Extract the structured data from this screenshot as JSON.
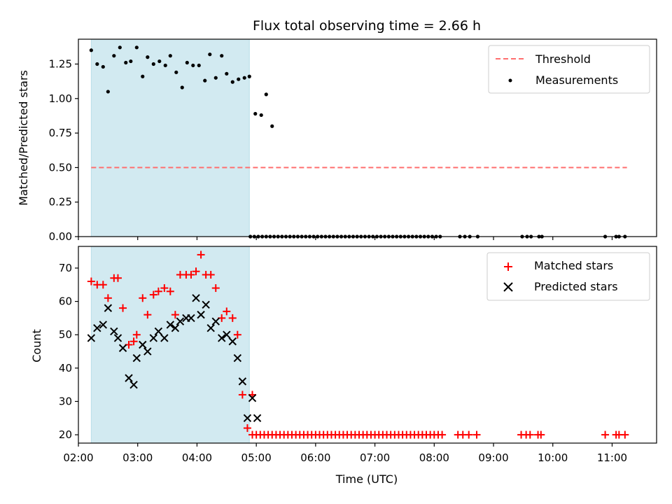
{
  "chart_data": [
    {
      "type": "scatter",
      "title": "Flux total observing time = 2.66 h",
      "ylabel": "Matched/Predicted stars",
      "xlabel": "",
      "xlim": [
        "02:00",
        "11:45"
      ],
      "ylim": [
        0,
        1.43
      ],
      "yticks": [
        0.0,
        0.25,
        0.5,
        0.75,
        1.0,
        1.25
      ],
      "ytick_labels": [
        "0.00",
        "0.25",
        "0.50",
        "0.75",
        "1.00",
        "1.25"
      ],
      "grid": false,
      "legend_position": "top-right",
      "shaded_span": {
        "start": "02:13",
        "end": "04:53",
        "color": "#add8e6"
      },
      "threshold": {
        "name": "Threshold",
        "y": 0.5,
        "x_start": "02:13",
        "x_end": "11:15",
        "color": "#ff6f6f",
        "style": "dashed"
      },
      "series": [
        {
          "name": "Measurements",
          "color": "#000000",
          "marker": "dot",
          "points": [
            [
              "02:13",
              1.35
            ],
            [
              "02:19",
              1.25
            ],
            [
              "02:25",
              1.23
            ],
            [
              "02:30",
              1.05
            ],
            [
              "02:36",
              1.31
            ],
            [
              "02:42",
              1.37
            ],
            [
              "02:48",
              1.26
            ],
            [
              "02:53",
              1.27
            ],
            [
              "02:59",
              1.37
            ],
            [
              "03:05",
              1.16
            ],
            [
              "03:10",
              1.3
            ],
            [
              "03:16",
              1.25
            ],
            [
              "03:22",
              1.27
            ],
            [
              "03:28",
              1.24
            ],
            [
              "03:33",
              1.31
            ],
            [
              "03:39",
              1.19
            ],
            [
              "03:45",
              1.08
            ],
            [
              "03:50",
              1.26
            ],
            [
              "03:56",
              1.24
            ],
            [
              "04:02",
              1.24
            ],
            [
              "04:08",
              1.13
            ],
            [
              "04:13",
              1.32
            ],
            [
              "04:19",
              1.15
            ],
            [
              "04:25",
              1.31
            ],
            [
              "04:30",
              1.18
            ],
            [
              "04:36",
              1.12
            ],
            [
              "04:42",
              1.14
            ],
            [
              "04:48",
              1.15
            ],
            [
              "04:53",
              1.16
            ],
            [
              "04:59",
              0.89
            ],
            [
              "05:05",
              0.88
            ],
            [
              "05:10",
              1.03
            ],
            [
              "05:16",
              0.8
            ],
            [
              "04:54",
              0
            ],
            [
              "04:58",
              0
            ],
            [
              "05:02",
              0
            ],
            [
              "05:06",
              0
            ],
            [
              "05:10",
              0
            ],
            [
              "05:14",
              0
            ],
            [
              "05:18",
              0
            ],
            [
              "05:22",
              0
            ],
            [
              "05:26",
              0
            ],
            [
              "05:30",
              0
            ],
            [
              "05:34",
              0
            ],
            [
              "05:38",
              0
            ],
            [
              "05:42",
              0
            ],
            [
              "05:46",
              0
            ],
            [
              "05:50",
              0
            ],
            [
              "05:54",
              0
            ],
            [
              "05:58",
              0
            ],
            [
              "06:02",
              0
            ],
            [
              "06:06",
              0
            ],
            [
              "06:10",
              0
            ],
            [
              "06:14",
              0
            ],
            [
              "06:18",
              0
            ],
            [
              "06:22",
              0
            ],
            [
              "06:26",
              0
            ],
            [
              "06:30",
              0
            ],
            [
              "06:34",
              0
            ],
            [
              "06:38",
              0
            ],
            [
              "06:42",
              0
            ],
            [
              "06:46",
              0
            ],
            [
              "06:50",
              0
            ],
            [
              "06:54",
              0
            ],
            [
              "06:58",
              0
            ],
            [
              "07:02",
              0
            ],
            [
              "07:06",
              0
            ],
            [
              "07:10",
              0
            ],
            [
              "07:14",
              0
            ],
            [
              "07:18",
              0
            ],
            [
              "07:22",
              0
            ],
            [
              "07:26",
              0
            ],
            [
              "07:30",
              0
            ],
            [
              "07:34",
              0
            ],
            [
              "07:38",
              0
            ],
            [
              "07:42",
              0
            ],
            [
              "07:46",
              0
            ],
            [
              "07:50",
              0
            ],
            [
              "07:54",
              0
            ],
            [
              "07:58",
              0
            ],
            [
              "08:02",
              0
            ],
            [
              "08:06",
              0
            ],
            [
              "08:26",
              0
            ],
            [
              "08:31",
              0
            ],
            [
              "08:36",
              0
            ],
            [
              "08:44",
              0
            ],
            [
              "09:29",
              0
            ],
            [
              "09:34",
              0
            ],
            [
              "09:38",
              0
            ],
            [
              "09:46",
              0
            ],
            [
              "09:49",
              0
            ],
            [
              "10:53",
              0
            ],
            [
              "11:04",
              0
            ],
            [
              "11:07",
              0
            ],
            [
              "11:13",
              0
            ]
          ]
        }
      ]
    },
    {
      "type": "scatter",
      "title": "",
      "ylabel": "Count",
      "xlabel": "Time (UTC)",
      "xlim": [
        "02:00",
        "11:45"
      ],
      "ylim": [
        17.5,
        76.5
      ],
      "yticks": [
        20,
        30,
        40,
        50,
        60,
        70
      ],
      "ytick_labels": [
        "20",
        "30",
        "40",
        "50",
        "60",
        "70"
      ],
      "xticks": [
        "02:00",
        "03:00",
        "04:00",
        "05:00",
        "06:00",
        "07:00",
        "08:00",
        "09:00",
        "10:00",
        "11:00"
      ],
      "xtick_labels": [
        "02:00",
        "03:00",
        "04:00",
        "05:00",
        "06:00",
        "07:00",
        "08:00",
        "09:00",
        "10:00",
        "11:00"
      ],
      "grid": false,
      "legend_position": "top-right",
      "shaded_span": {
        "start": "02:13",
        "end": "04:53",
        "color": "#add8e6"
      },
      "series": [
        {
          "name": "Matched stars",
          "color": "#ff0000",
          "marker": "plus",
          "points": [
            [
              "02:13",
              66
            ],
            [
              "02:19",
              65
            ],
            [
              "02:25",
              65
            ],
            [
              "02:30",
              61
            ],
            [
              "02:36",
              67
            ],
            [
              "02:40",
              67
            ],
            [
              "02:45",
              58
            ],
            [
              "02:51",
              47
            ],
            [
              "02:56",
              48
            ],
            [
              "02:59",
              50
            ],
            [
              "03:05",
              61
            ],
            [
              "03:10",
              56
            ],
            [
              "03:16",
              62
            ],
            [
              "03:21",
              63
            ],
            [
              "03:27",
              64
            ],
            [
              "03:33",
              63
            ],
            [
              "03:38",
              56
            ],
            [
              "03:43",
              68
            ],
            [
              "03:49",
              68
            ],
            [
              "03:54",
              68
            ],
            [
              "03:59",
              69
            ],
            [
              "04:04",
              74
            ],
            [
              "04:09",
              68
            ],
            [
              "04:14",
              68
            ],
            [
              "04:19",
              64
            ],
            [
              "04:25",
              55
            ],
            [
              "04:30",
              57
            ],
            [
              "04:36",
              55
            ],
            [
              "04:41",
              50
            ],
            [
              "04:46",
              32
            ],
            [
              "04:51",
              22
            ],
            [
              "04:56",
              32
            ],
            [
              "04:56",
              20
            ],
            [
              "05:00",
              20
            ],
            [
              "05:04",
              20
            ],
            [
              "05:08",
              20
            ],
            [
              "05:12",
              20
            ],
            [
              "05:16",
              20
            ],
            [
              "05:20",
              20
            ],
            [
              "05:24",
              20
            ],
            [
              "05:28",
              20
            ],
            [
              "05:32",
              20
            ],
            [
              "05:36",
              20
            ],
            [
              "05:40",
              20
            ],
            [
              "05:44",
              20
            ],
            [
              "05:48",
              20
            ],
            [
              "05:52",
              20
            ],
            [
              "05:56",
              20
            ],
            [
              "06:00",
              20
            ],
            [
              "06:04",
              20
            ],
            [
              "06:08",
              20
            ],
            [
              "06:12",
              20
            ],
            [
              "06:16",
              20
            ],
            [
              "06:20",
              20
            ],
            [
              "06:24",
              20
            ],
            [
              "06:28",
              20
            ],
            [
              "06:32",
              20
            ],
            [
              "06:36",
              20
            ],
            [
              "06:40",
              20
            ],
            [
              "06:44",
              20
            ],
            [
              "06:48",
              20
            ],
            [
              "06:52",
              20
            ],
            [
              "06:56",
              20
            ],
            [
              "07:00",
              20
            ],
            [
              "07:04",
              20
            ],
            [
              "07:08",
              20
            ],
            [
              "07:12",
              20
            ],
            [
              "07:16",
              20
            ],
            [
              "07:20",
              20
            ],
            [
              "07:24",
              20
            ],
            [
              "07:28",
              20
            ],
            [
              "07:32",
              20
            ],
            [
              "07:36",
              20
            ],
            [
              "07:40",
              20
            ],
            [
              "07:44",
              20
            ],
            [
              "07:48",
              20
            ],
            [
              "07:52",
              20
            ],
            [
              "07:56",
              20
            ],
            [
              "08:00",
              20
            ],
            [
              "08:04",
              20
            ],
            [
              "08:08",
              20
            ],
            [
              "08:24",
              20
            ],
            [
              "08:29",
              20
            ],
            [
              "08:35",
              20
            ],
            [
              "08:43",
              20
            ],
            [
              "09:28",
              20
            ],
            [
              "09:33",
              20
            ],
            [
              "09:37",
              20
            ],
            [
              "09:45",
              20
            ],
            [
              "09:48",
              20
            ],
            [
              "10:53",
              20
            ],
            [
              "11:04",
              20
            ],
            [
              "11:07",
              20
            ],
            [
              "11:13",
              20
            ]
          ]
        },
        {
          "name": "Predicted stars",
          "color": "#000000",
          "marker": "x",
          "points": [
            [
              "02:13",
              49
            ],
            [
              "02:19",
              52
            ],
            [
              "02:25",
              53
            ],
            [
              "02:30",
              58
            ],
            [
              "02:36",
              51
            ],
            [
              "02:40",
              49
            ],
            [
              "02:45",
              46
            ],
            [
              "02:51",
              37
            ],
            [
              "02:56",
              35
            ],
            [
              "02:59",
              43
            ],
            [
              "03:05",
              47
            ],
            [
              "03:10",
              45
            ],
            [
              "03:16",
              49
            ],
            [
              "03:21",
              51
            ],
            [
              "03:27",
              49
            ],
            [
              "03:33",
              53
            ],
            [
              "03:38",
              52
            ],
            [
              "03:43",
              54
            ],
            [
              "03:49",
              55
            ],
            [
              "03:54",
              55
            ],
            [
              "03:59",
              61
            ],
            [
              "04:04",
              56
            ],
            [
              "04:09",
              59
            ],
            [
              "04:14",
              52
            ],
            [
              "04:19",
              54
            ],
            [
              "04:25",
              49
            ],
            [
              "04:30",
              50
            ],
            [
              "04:36",
              48
            ],
            [
              "04:41",
              43
            ],
            [
              "04:46",
              36
            ],
            [
              "04:51",
              25
            ],
            [
              "04:56",
              31
            ],
            [
              "05:01",
              25
            ]
          ]
        }
      ]
    }
  ]
}
